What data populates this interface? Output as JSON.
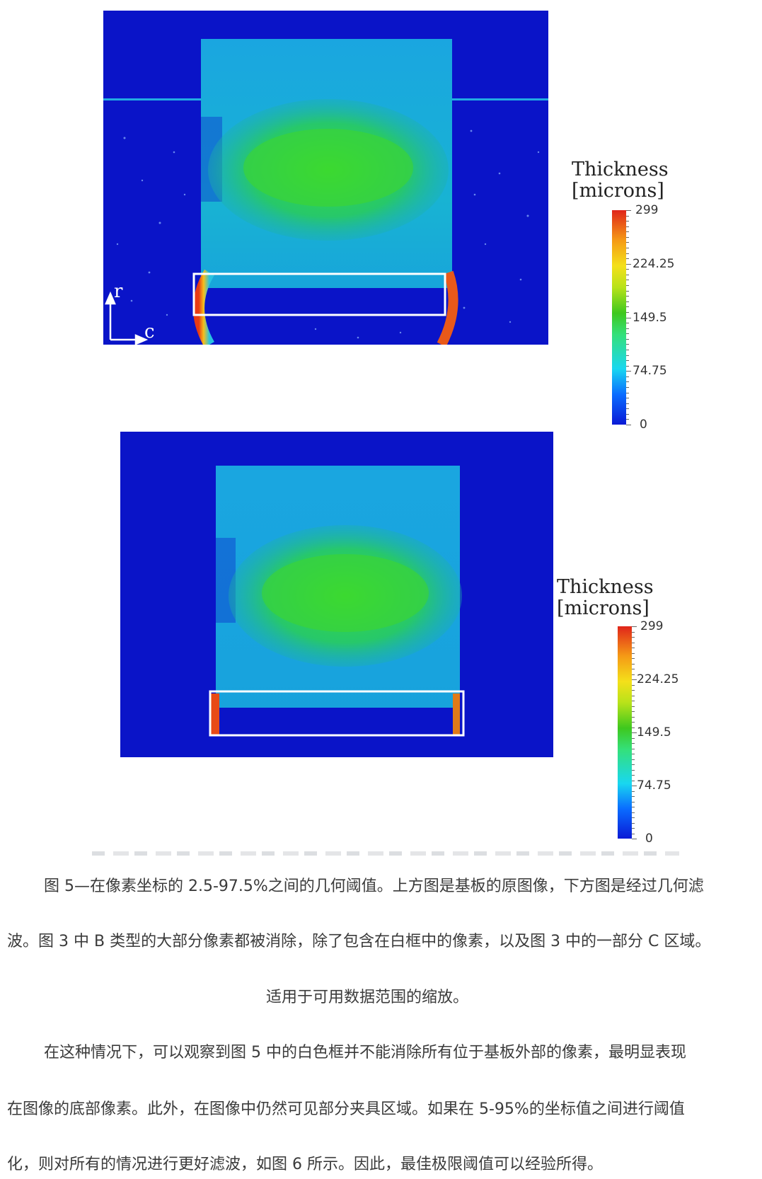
{
  "figure_top": {
    "axes": {
      "vertical": "r",
      "horizontal": "c"
    },
    "colorbar": {
      "title_line1": "Thickness",
      "title_line2": "[microns]",
      "ticks": [
        "299",
        "224.25",
        "149.5",
        "74.75",
        "0"
      ]
    }
  },
  "figure_bottom": {
    "colorbar": {
      "title_line1": "Thickness",
      "title_line2": "[microns]",
      "ticks": [
        "299",
        "224.25",
        "149.5",
        "74.75",
        "0"
      ]
    }
  },
  "text": {
    "caption_line1": "图 5—在像素坐标的 2.5-97.5%之间的几何阈值。上方图是基板的原图像，下方图是经过几何滤",
    "caption_line2": "波。图 3 中 B 类型的大部分像素都被消除，除了包含在白框中的像素，以及图 3 中的一部分  C 区域。",
    "caption_line3": "适用于可用数据范围的缩放。",
    "para_line1": "在这种情况下，可以观察到图 5 中的白色框并不能消除所有位于基板外部的像素，最明显表现",
    "para_line2": "在图像的底部像素。此外，在图像中仍然可见部分夹具区域。如果在  5-95%的坐标值之间进行阈值",
    "para_line3": "化，则对所有的情况进行更好滤波，如图 6 所示。因此，最佳极限阈值可以经验所得。"
  }
}
